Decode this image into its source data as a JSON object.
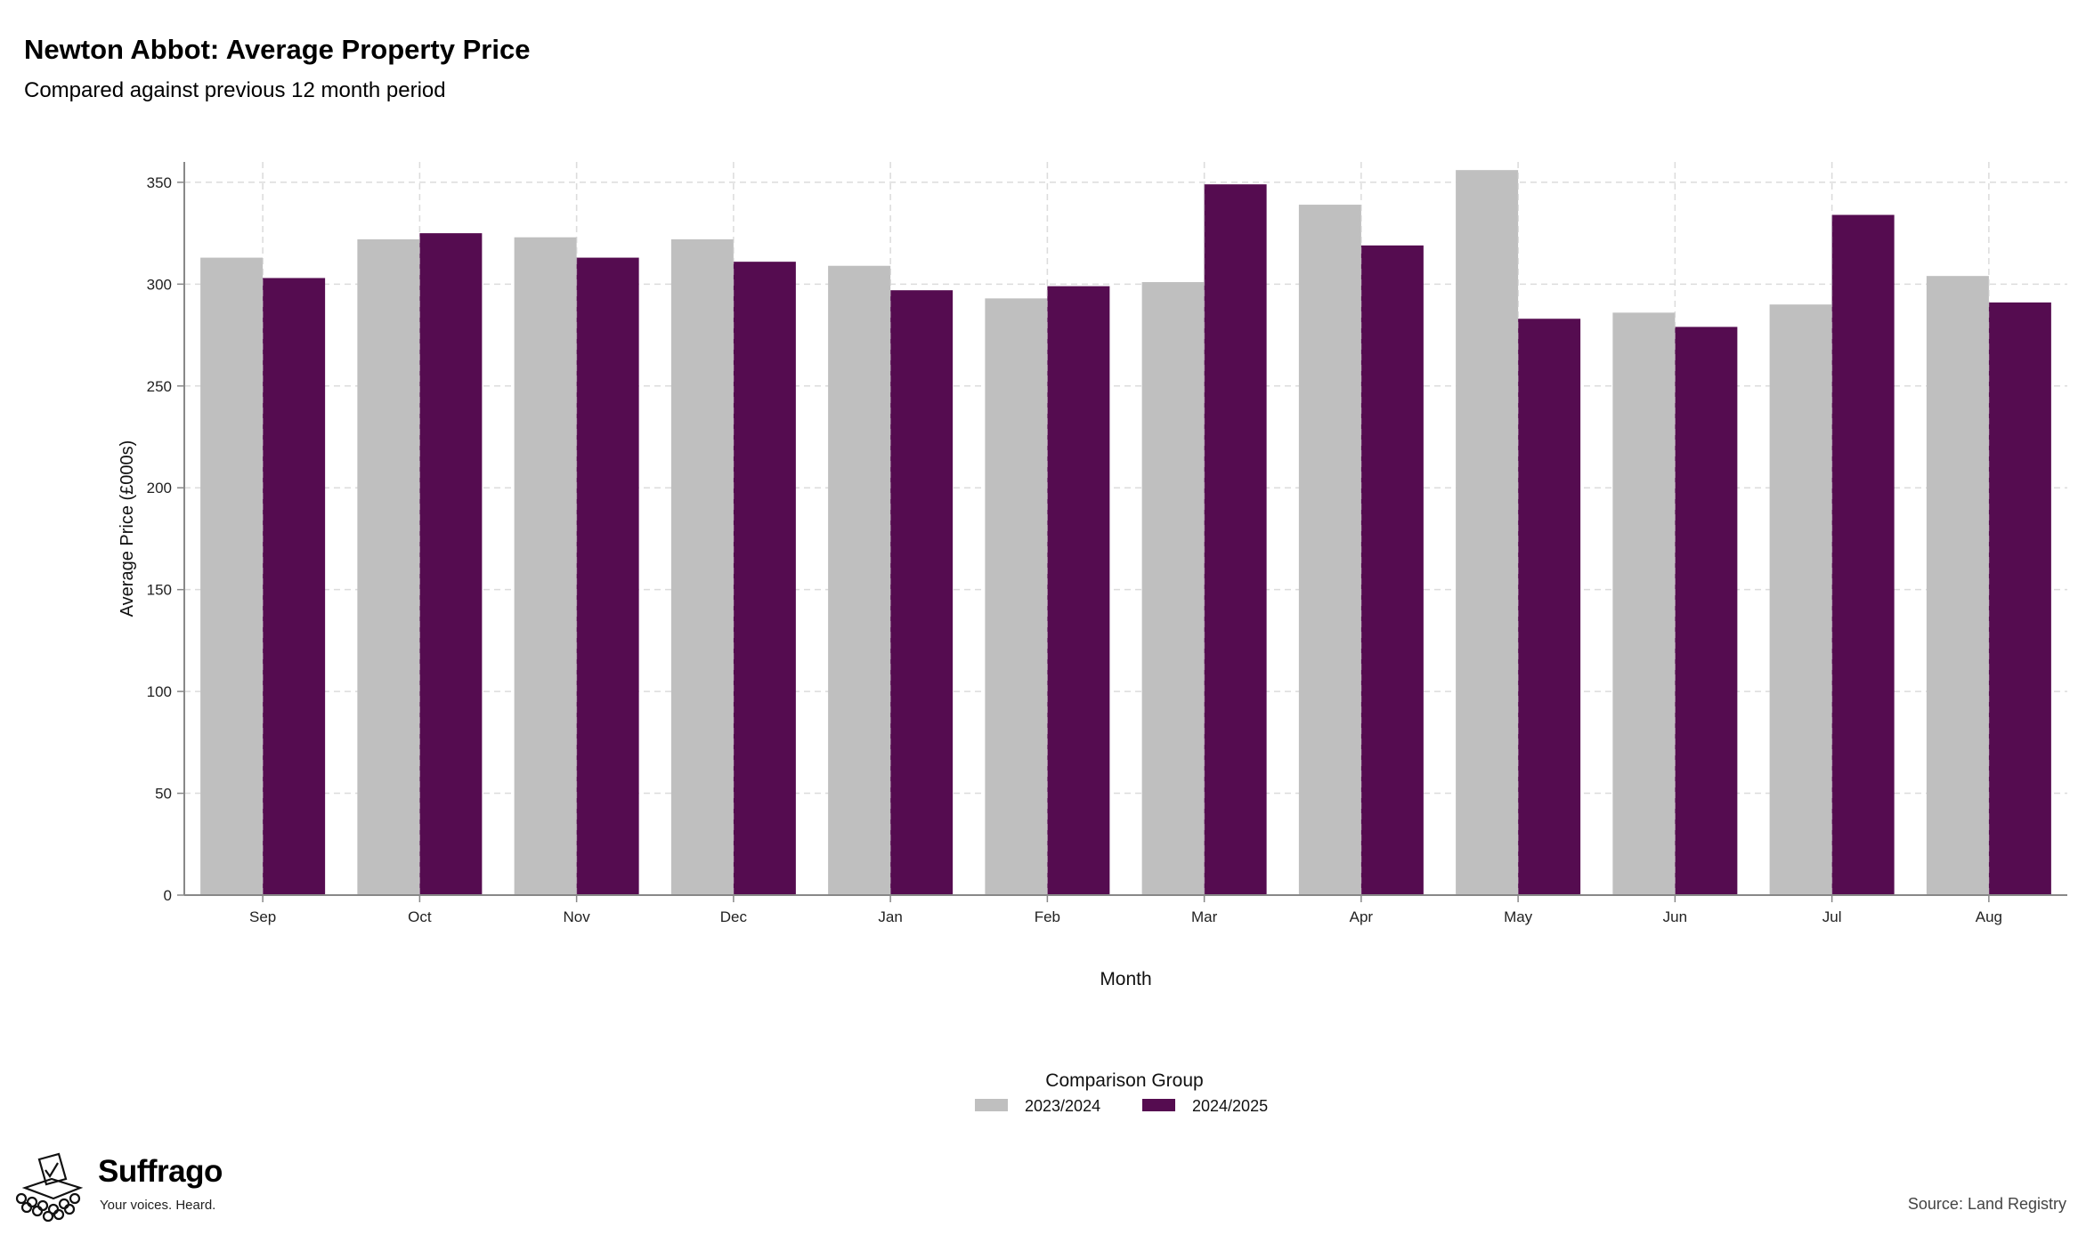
{
  "header": {
    "title": "Newton Abbot: Average Property Price",
    "subtitle": "Compared against previous 12 month period"
  },
  "footer": {
    "brand": "Suffrago",
    "tagline": "Your voices. Heard.",
    "source": "Source: Land Registry"
  },
  "colors": {
    "series_2023": "#bfbfbf",
    "series_2024": "#550c50",
    "grid": "#dcdcdc",
    "axis": "#888888"
  },
  "chart_data": {
    "type": "bar",
    "title": "Newton Abbot: Average Property Price",
    "subtitle": "Compared against previous 12 month period",
    "xlabel": "Month",
    "ylabel": "Average Price (£000s)",
    "ylim": [
      0,
      360
    ],
    "yticks": [
      0,
      50,
      100,
      150,
      200,
      250,
      300,
      350
    ],
    "grid": true,
    "legend_title": "Comparison Group",
    "legend_position": "bottom",
    "categories": [
      "Sep",
      "Oct",
      "Nov",
      "Dec",
      "Jan",
      "Feb",
      "Mar",
      "Apr",
      "May",
      "Jun",
      "Jul",
      "Aug"
    ],
    "series": [
      {
        "name": "2023/2024",
        "color": "#bfbfbf",
        "values": [
          313,
          322,
          323,
          322,
          309,
          293,
          301,
          339,
          356,
          286,
          290,
          304
        ]
      },
      {
        "name": "2024/2025",
        "color": "#550c50",
        "values": [
          303,
          325,
          313,
          311,
          297,
          299,
          349,
          319,
          283,
          279,
          334,
          291
        ]
      }
    ]
  }
}
